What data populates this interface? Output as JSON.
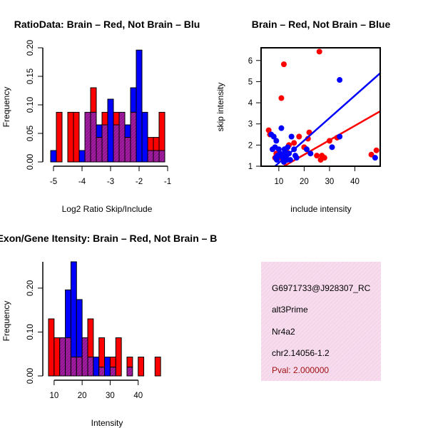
{
  "colors": {
    "red": "#ff0000",
    "blue": "#0000ff",
    "purple": "#800080",
    "info_bg": "#f5d6ea"
  },
  "chart_data": [
    {
      "type": "bar",
      "title": "RatioData: Brain – Red, Not Brain – Blu",
      "xlabel": "Log2 Ratio Skip/Include",
      "ylabel": "Frequency",
      "xlim": [
        -5.15,
        -1.05
      ],
      "ylim": [
        0,
        0.2
      ],
      "bin_width": 0.2,
      "xticks": [
        "-5",
        "-4",
        "-3",
        "-2",
        "-1"
      ],
      "yticks": [
        "0.00",
        "0.05",
        "0.10",
        "0.15",
        "0.20"
      ],
      "series": [
        {
          "name": "Brain",
          "color": "red",
          "bins_start": -4.9,
          "values": [
            0.087,
            0,
            0.087,
            0.087,
            0,
            0.087,
            0.13,
            0.043,
            0.087,
            0,
            0.087,
            0.087,
            0.043,
            0.087,
            0,
            0,
            0.043,
            0.043,
            0.087
          ]
        },
        {
          "name": "Not Brain",
          "color": "blue",
          "bins_start": -5.1,
          "values": [
            0.02,
            0,
            0,
            0,
            0,
            0.02,
            0.087,
            0.087,
            0.065,
            0.065,
            0.11,
            0.065,
            0.087,
            0.065,
            0.13,
            0.196,
            0.087,
            0.02,
            0.02,
            0.02
          ]
        }
      ]
    },
    {
      "type": "scatter",
      "title": "Brain – Red, Not Brain – Blue",
      "xlabel": "include intensity",
      "ylabel": "skip intensity",
      "xlim": [
        3,
        50
      ],
      "ylim": [
        1,
        6.6
      ],
      "xticks": [
        "10",
        "20",
        "30",
        "40"
      ],
      "yticks": [
        "1",
        "2",
        "3",
        "4",
        "5",
        "6"
      ],
      "series": [
        {
          "name": "Brain",
          "color": "red",
          "points": [
            [
              26,
              6.42
            ],
            [
              12,
              5.82
            ],
            [
              11,
              4.22
            ],
            [
              48.5,
              1.75
            ],
            [
              46.5,
              1.55
            ],
            [
              33,
              2.35
            ],
            [
              30,
              2.2
            ],
            [
              28,
              1.4
            ],
            [
              27,
              1.5
            ],
            [
              26.5,
              1.3
            ],
            [
              25,
              1.5
            ],
            [
              22,
              2.6
            ],
            [
              21.5,
              2.3
            ],
            [
              20,
              1.9
            ],
            [
              18,
              2.4
            ],
            [
              16,
              2.1
            ],
            [
              14,
              2.0
            ],
            [
              13,
              1.7
            ],
            [
              12.5,
              1.5
            ],
            [
              11,
              1.4
            ],
            [
              10.5,
              1.6
            ],
            [
              9.5,
              1.5
            ],
            [
              9,
              1.6
            ],
            [
              8.5,
              1.4
            ],
            [
              6,
              2.7
            ],
            [
              6.5,
              2.5
            ]
          ],
          "fit": [
            [
              12,
              1.0
            ],
            [
              50,
              3.6
            ]
          ]
        },
        {
          "name": "Not Brain",
          "color": "blue",
          "points": [
            [
              34,
              5.08
            ],
            [
              7,
              2.5
            ],
            [
              8,
              2.4
            ],
            [
              9,
              2.2
            ],
            [
              10,
              1.8
            ],
            [
              10.5,
              1.6
            ],
            [
              11,
              2.8
            ],
            [
              11.5,
              1.4
            ],
            [
              12,
              1.2
            ],
            [
              12.5,
              1.7
            ],
            [
              13,
              1.5
            ],
            [
              13.5,
              1.9
            ],
            [
              14,
              1.6
            ],
            [
              14.5,
              1.3
            ],
            [
              15,
              2.4
            ],
            [
              16,
              1.8
            ],
            [
              16.5,
              1.5
            ],
            [
              17,
              1.4
            ],
            [
              9.5,
              1.5
            ],
            [
              8.5,
              1.9
            ],
            [
              8.8,
              1.4
            ],
            [
              9.2,
              1.3
            ],
            [
              10.2,
              1.5
            ],
            [
              11.2,
              1.5
            ],
            [
              12.2,
              1.8
            ],
            [
              13.2,
              1.3
            ],
            [
              7.5,
              1.8
            ],
            [
              21,
              1.8
            ],
            [
              22.5,
              1.6
            ],
            [
              31,
              1.9
            ],
            [
              34,
              2.4
            ],
            [
              48,
              1.4
            ]
          ],
          "fit": [
            [
              8.5,
              1.0
            ],
            [
              50,
              5.4
            ]
          ]
        }
      ]
    },
    {
      "type": "bar",
      "title": "Exon/Gene Itensity: Brain – Red, Not Brain – B",
      "xlabel": "Intensity",
      "ylabel": "Frequency",
      "xlim": [
        8,
        50
      ],
      "ylim": [
        0,
        0.26
      ],
      "bin_width": 2,
      "xticks": [
        "10",
        "20",
        "30",
        "40"
      ],
      "yticks": [
        "0.00",
        "0.10",
        "0.20"
      ],
      "series": [
        {
          "name": "Brain",
          "color": "red",
          "bins_start": 8,
          "values": [
            0.13,
            0.087,
            0.087,
            0.087,
            0.043,
            0.043,
            0.087,
            0.13,
            0,
            0.087,
            0,
            0.043,
            0.087,
            0,
            0.043,
            0,
            0.043,
            0,
            0,
            0.043
          ]
        },
        {
          "name": "Not Brain",
          "color": "blue",
          "bins_start": 12,
          "values": [
            0.087,
            0.196,
            0.26,
            0.174,
            0.087,
            0.043,
            0.043,
            0.02,
            0.043,
            0.02,
            0,
            0,
            0.02
          ]
        }
      ]
    }
  ],
  "info_panel": {
    "probe_id": "G6971733@J928307_RC",
    "event_type": "alt3Prime",
    "gene": "Nr4a2",
    "location": "chr2.14056-1.2",
    "pval": "Pval: 2.000000"
  }
}
